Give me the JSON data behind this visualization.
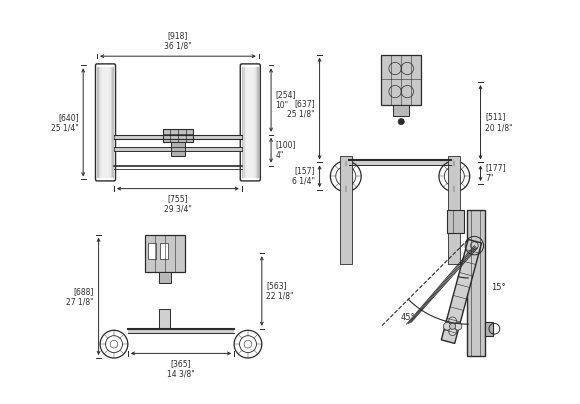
{
  "bg": "#ffffff",
  "lc": "#2a2a2a",
  "fs": 5.5,
  "dims": {
    "v1_918": "[918]\n36 1/8\"",
    "v1_640": "[640]\n25 1/4\"",
    "v1_755": "[755]\n29 3/4\"",
    "v1_254": "[254]\n10\"",
    "v1_100": "[100]\n4\"",
    "v2_637": "[637]\n25 1/8\"",
    "v2_511": "[511]\n20 1/8\"",
    "v2_157": "[157]\n6 1/4\"",
    "v2_177": "[177]\n7\"",
    "v3_688": "[688]\n27 1/8\"",
    "v3_563": "[563]\n22 1/8\"",
    "v3_365": "[365]\n14 3/8\"",
    "v4_15": "15°",
    "v4_45": "45°"
  }
}
